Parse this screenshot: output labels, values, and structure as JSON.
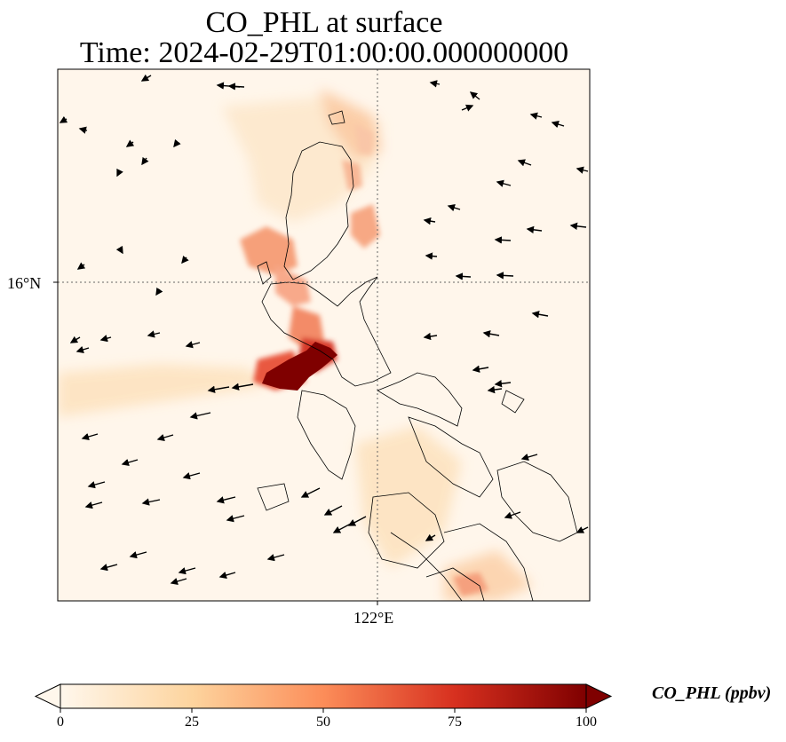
{
  "title": {
    "line1": "CO_PHL at surface",
    "line2": "Time: 2024-02-29T01:00:00.000000000"
  },
  "axes": {
    "lat_label": "16°N",
    "lon_label": "122°E"
  },
  "colorbar": {
    "label": "CO_PHL (ppbv)",
    "ticks": [
      "0",
      "25",
      "50",
      "75",
      "100"
    ],
    "colormap": "OrRd",
    "colors": [
      "#fff7ec",
      "#fdd49e",
      "#fc8d59",
      "#d7301f",
      "#7f0000"
    ],
    "extend": "both"
  },
  "map": {
    "field": "CO_PHL",
    "level": "surface",
    "gridlines": "dotted",
    "coastlines": true,
    "wind_vectors": true
  }
}
